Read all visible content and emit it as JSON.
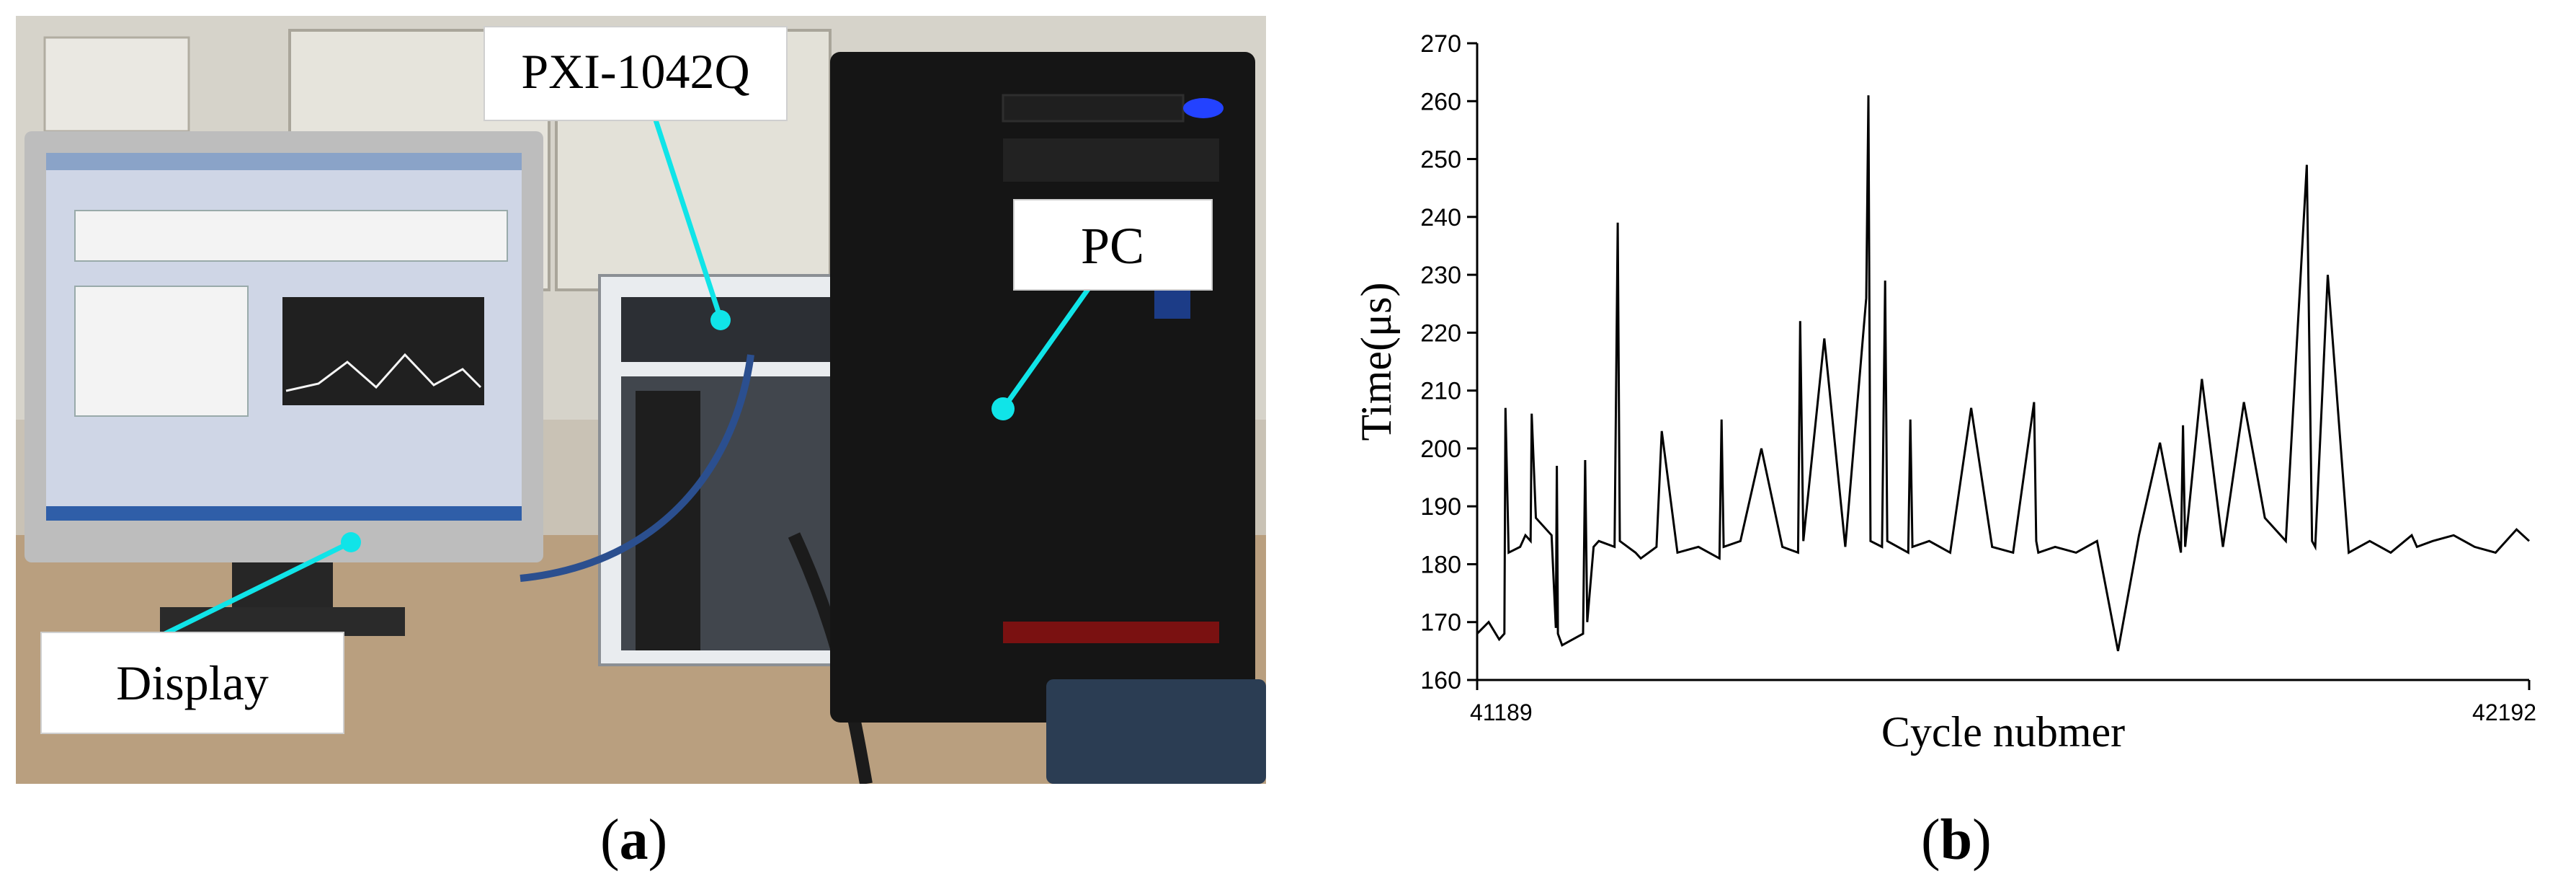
{
  "panel_a": {
    "caption_letter": "a",
    "labels": {
      "pxi": "PXI-1042Q",
      "pc": "PC",
      "display": "Display"
    }
  },
  "panel_b": {
    "caption_letter": "b"
  },
  "chart_data": {
    "type": "line",
    "title": "",
    "xlabel": "Cycle nubmer",
    "ylabel": "Time(μs)",
    "xlim": [
      41189,
      42192
    ],
    "ylim": [
      160,
      270
    ],
    "x_tick_labels": [
      "41189",
      "42192"
    ],
    "y_ticks": [
      160,
      170,
      180,
      190,
      200,
      210,
      220,
      230,
      240,
      250,
      260,
      270
    ],
    "grid": false,
    "series": [
      {
        "name": "",
        "x": [
          41189,
          41200,
          41210,
          41215,
          41216,
          41219,
          41230,
          41235,
          41240,
          41241,
          41245,
          41260,
          41264,
          41265,
          41266,
          41270,
          41290,
          41292,
          41294,
          41300,
          41305,
          41320,
          41323,
          41325,
          41340,
          41345,
          41360,
          41365,
          41380,
          41400,
          41420,
          41422,
          41424,
          41440,
          41460,
          41480,
          41495,
          41497,
          41500,
          41520,
          41540,
          41560,
          41562,
          41564,
          41575,
          41578,
          41580,
          41600,
          41602,
          41604,
          41620,
          41640,
          41660,
          41680,
          41700,
          41720,
          41722,
          41724,
          41740,
          41760,
          41780,
          41800,
          41820,
          41840,
          41860,
          41862,
          41864,
          41880,
          41900,
          41920,
          41940,
          41960,
          41980,
          41985,
          41988,
          42000,
          42020,
          42040,
          42060,
          42080,
          42085,
          42100,
          42120,
          42140,
          42160,
          42180,
          42192
        ],
        "y": [
          168,
          170,
          167,
          168,
          207,
          182,
          183,
          185,
          184,
          206,
          188,
          185,
          169,
          197,
          168,
          166,
          168,
          198,
          170,
          183,
          184,
          183,
          239,
          184,
          182,
          181,
          183,
          203,
          182,
          183,
          181,
          205,
          183,
          184,
          200,
          183,
          182,
          222,
          184,
          219,
          183,
          226,
          261,
          184,
          183,
          229,
          184,
          182,
          205,
          183,
          184,
          182,
          207,
          183,
          182,
          208,
          184,
          182,
          183,
          182,
          184,
          165,
          185,
          201,
          182,
          204,
          183,
          212,
          183,
          208,
          188,
          184,
          249,
          184,
          183,
          230,
          182,
          184,
          182,
          185,
          183,
          184,
          185,
          183,
          182,
          186,
          184
        ]
      }
    ]
  }
}
